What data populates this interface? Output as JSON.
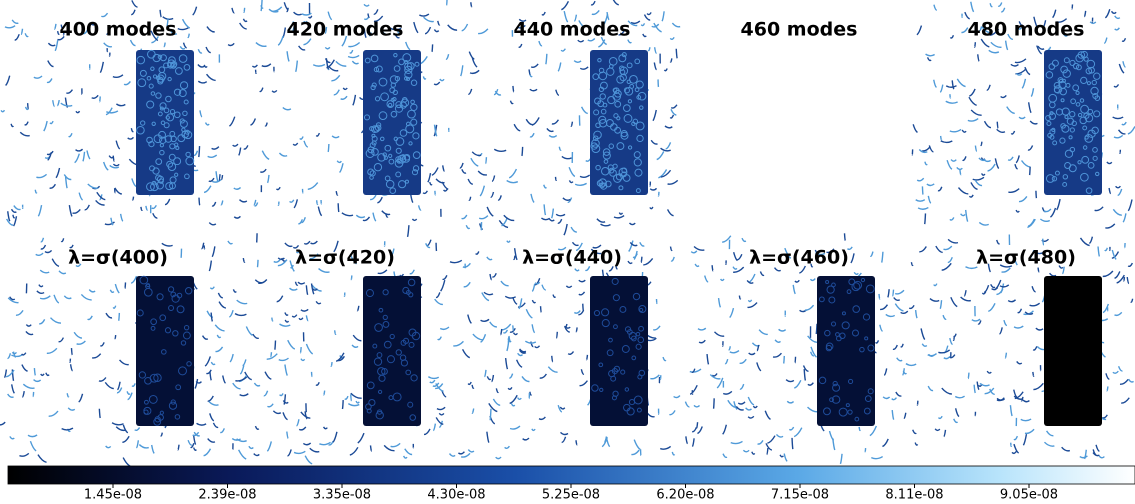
{
  "panels": [
    {
      "label": "400 modes"
    },
    {
      "label": "420 modes"
    },
    {
      "label": "440 modes"
    },
    {
      "label": "460 modes"
    },
    {
      "label": "480 modes"
    },
    {
      "label": "λ=σ(400)"
    },
    {
      "label": "λ=σ(420)"
    },
    {
      "label": "λ=σ(440)"
    },
    {
      "label": "λ=σ(460)"
    },
    {
      "label": "λ=σ(480)"
    }
  ],
  "colorbar": {
    "ticks": [
      "1.45e-08",
      "2.39e-08",
      "3.35e-08",
      "4.30e-08",
      "5.25e-08",
      "6.20e-08",
      "7.15e-08",
      "8.11e-08",
      "9.05e-08"
    ]
  }
}
